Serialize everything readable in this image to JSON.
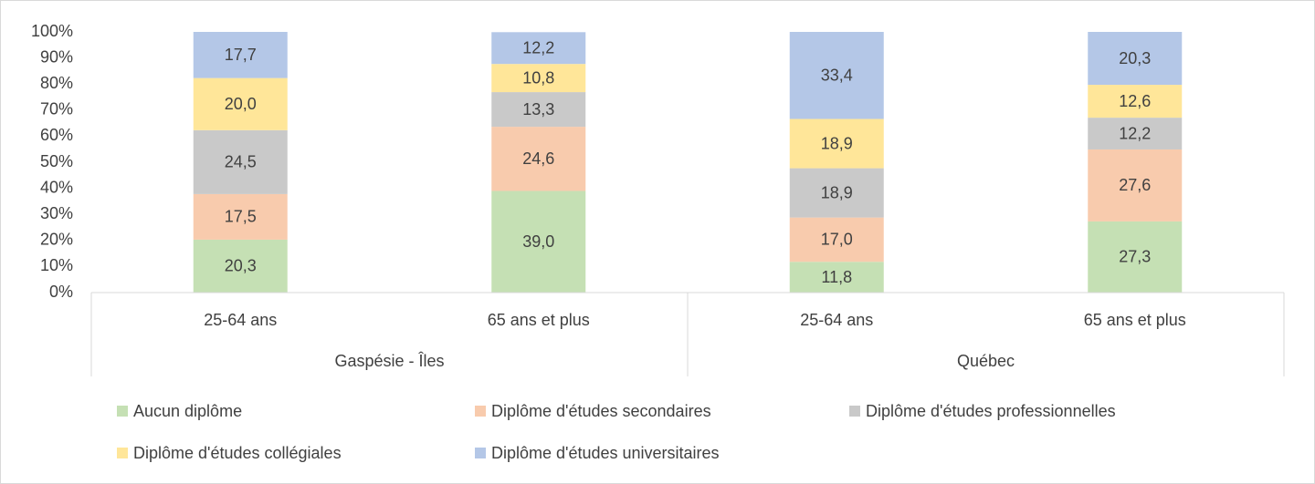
{
  "chart_data": {
    "type": "stacked_bar",
    "categories": [
      "25-64 ans",
      "65 ans et plus",
      "25-64 ans",
      "65 ans et plus"
    ],
    "groups": [
      "Gaspésie - Îles",
      "Québec"
    ],
    "series": [
      {
        "name": "Aucun diplôme",
        "color": "#c5e0b4",
        "values": [
          20.3,
          39.0,
          11.8,
          27.3
        ],
        "value_labels": [
          "20,3",
          "39,0",
          "11,8",
          "27,3"
        ]
      },
      {
        "name": "Diplôme d'études secondaires",
        "color": "#f8cbad",
        "values": [
          17.5,
          24.6,
          17.0,
          27.6
        ],
        "value_labels": [
          "17,5",
          "24,6",
          "17,0",
          "27,6"
        ]
      },
      {
        "name": "Diplôme d'études professionnelles",
        "color": "#c9c9c9",
        "values": [
          24.5,
          13.3,
          18.9,
          12.2
        ],
        "value_labels": [
          "24,5",
          "13,3",
          "18,9",
          "12,2"
        ]
      },
      {
        "name": "Diplôme d'études collégiales",
        "color": "#ffe699",
        "values": [
          20.0,
          10.8,
          18.9,
          12.6
        ],
        "value_labels": [
          "20,0",
          "10,8",
          "18,9",
          "12,6"
        ]
      },
      {
        "name": "Diplôme d'études universitaires",
        "color": "#b4c7e7",
        "values": [
          17.7,
          12.2,
          33.4,
          20.3
        ],
        "value_labels": [
          "17,7",
          "12,2",
          "33,4",
          "20,3"
        ]
      }
    ],
    "ylim": [
      0,
      100
    ],
    "yticks": [
      {
        "value": 0,
        "label": "0%"
      },
      {
        "value": 10,
        "label": "10%"
      },
      {
        "value": 20,
        "label": "20%"
      },
      {
        "value": 30,
        "label": "30%"
      },
      {
        "value": 40,
        "label": "40%"
      },
      {
        "value": 50,
        "label": "50%"
      },
      {
        "value": 60,
        "label": "60%"
      },
      {
        "value": 70,
        "label": "70%"
      },
      {
        "value": 80,
        "label": "80%"
      },
      {
        "value": 90,
        "label": "90%"
      },
      {
        "value": 100,
        "label": "100%"
      }
    ],
    "legend": "bottom"
  }
}
